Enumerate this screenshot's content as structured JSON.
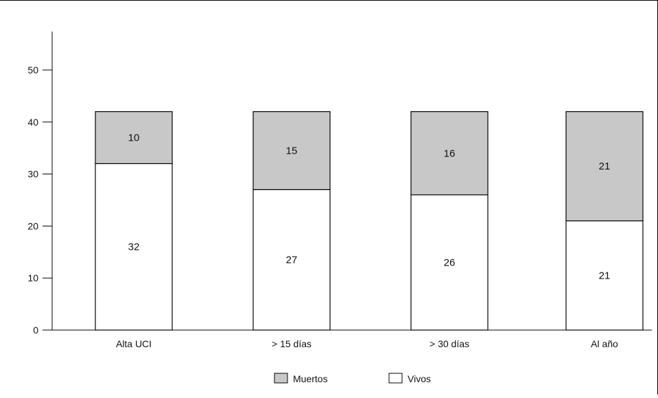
{
  "chart_data": {
    "type": "bar",
    "stacked": true,
    "categories": [
      "Alta UCI",
      "> 15 días",
      "> 30 días",
      "Al año"
    ],
    "series": [
      {
        "name": "Vivos",
        "values": [
          32,
          27,
          26,
          21
        ],
        "color": "#ffffff"
      },
      {
        "name": "Muertos",
        "values": [
          10,
          15,
          16,
          21
        ],
        "color": "#c8c8c8"
      }
    ],
    "data_labels": {
      "Vivos": [
        "32",
        "27",
        "26",
        "21"
      ],
      "Muertos": [
        "10",
        "15",
        "16",
        "21"
      ]
    },
    "ylim": [
      0,
      55
    ],
    "yticks": [
      "0",
      "10",
      "20",
      "30",
      "40",
      "50"
    ],
    "title": "",
    "xlabel": "",
    "ylabel": "",
    "grid": false,
    "legend_position": "bottom-center",
    "legend": [
      "Muertos",
      "Vivos"
    ]
  }
}
